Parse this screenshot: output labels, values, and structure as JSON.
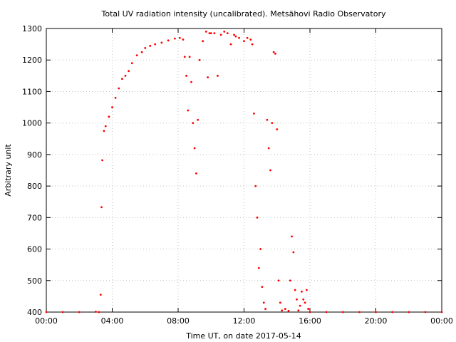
{
  "chart_data": {
    "type": "scatter",
    "title": "Total UV radiation intensity (uncalibrated). Metsähovi Radio Observatory",
    "xlabel": "Time UT, on date 2017-05-14",
    "ylabel": "Arbitrary unit",
    "x_unit": "hours UT",
    "xlim": [
      0,
      24
    ],
    "ylim": [
      400,
      1300
    ],
    "x_ticks": [
      {
        "value": 0,
        "label": "00:00"
      },
      {
        "value": 4,
        "label": "04:00"
      },
      {
        "value": 8,
        "label": "08:00"
      },
      {
        "value": 12,
        "label": "12:00"
      },
      {
        "value": 16,
        "label": "16:00"
      },
      {
        "value": 20,
        "label": "20:00"
      },
      {
        "value": 24,
        "label": "00:00"
      }
    ],
    "y_ticks": [
      400,
      500,
      600,
      700,
      800,
      900,
      1000,
      1100,
      1200,
      1300
    ],
    "grid": true,
    "marker_color": "#ff0000",
    "series": [
      {
        "x": [
          0,
          1,
          2,
          3,
          3.2,
          3.3,
          3.35,
          3.4,
          3.5,
          3.6,
          3.8,
          4.0,
          4.2,
          4.4,
          4.6,
          4.8,
          5.0,
          5.2,
          5.5,
          5.8,
          6.0,
          6.3,
          6.6,
          7.0,
          7.4,
          7.8,
          8.1,
          8.3,
          8.4,
          8.5,
          8.6,
          8.7,
          8.8,
          8.9,
          9.0,
          9.1,
          9.2,
          9.3,
          9.5,
          9.7,
          9.8,
          9.9,
          10.0,
          10.2,
          10.4,
          10.6,
          10.8,
          11.0,
          11.2,
          11.4,
          11.5,
          11.7,
          12.0,
          12.2,
          12.4,
          12.5,
          12.6,
          12.7,
          12.8,
          12.9,
          13.0,
          13.1,
          13.2,
          13.3,
          13.4,
          13.5,
          13.6,
          13.7,
          13.8,
          13.9,
          14.0,
          14.1,
          14.2,
          14.3,
          14.5,
          14.7,
          14.8,
          14.9,
          15.0,
          15.1,
          15.2,
          15.3,
          15.4,
          15.5,
          15.6,
          15.7,
          15.8,
          15.9,
          16.0,
          17,
          18,
          19,
          20,
          21,
          22,
          23,
          24
        ],
        "y": [
          400,
          400,
          400,
          401,
          400,
          455,
          733,
          882,
          975,
          990,
          1020,
          1050,
          1080,
          1110,
          1140,
          1150,
          1165,
          1190,
          1215,
          1225,
          1238,
          1245,
          1250,
          1255,
          1262,
          1268,
          1270,
          1265,
          1210,
          1150,
          1040,
          1210,
          1130,
          1000,
          920,
          840,
          1010,
          1200,
          1260,
          1290,
          1145,
          1285,
          1285,
          1285,
          1150,
          1280,
          1290,
          1285,
          1250,
          1280,
          1275,
          1270,
          1260,
          1270,
          1265,
          1250,
          1030,
          800,
          700,
          540,
          600,
          480,
          430,
          410,
          1010,
          920,
          850,
          1000,
          1225,
          1220,
          980,
          500,
          430,
          405,
          410,
          404,
          500,
          640,
          590,
          470,
          440,
          405,
          420,
          465,
          440,
          430,
          470,
          410,
          400,
          400,
          400,
          400,
          400,
          400,
          400,
          400,
          400
        ]
      }
    ]
  }
}
